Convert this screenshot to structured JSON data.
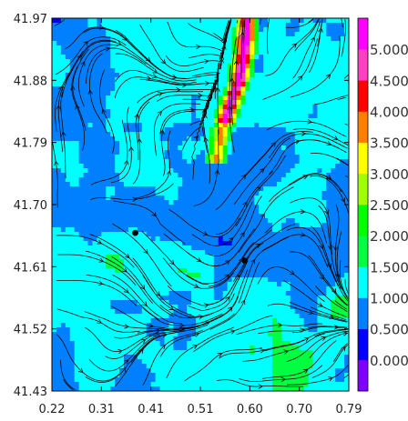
{
  "chart_data": {
    "type": "heatmap",
    "overlay": "streamlines",
    "xaxis": {
      "range": [
        0.22,
        0.79
      ],
      "ticks": [
        "0.22",
        "0.31",
        "0.41",
        "0.51",
        "0.60",
        "0.70",
        "0.79"
      ]
    },
    "yaxis": {
      "range": [
        41.43,
        41.97
      ],
      "ticks": [
        "41.97",
        "41.88",
        "41.79",
        "41.70",
        "41.61",
        "41.52",
        "41.43"
      ]
    },
    "colorbar": {
      "range": [
        -0.5,
        5.5
      ],
      "ticks": [
        "0.000",
        "0.500",
        "1.000",
        "1.500",
        "2.000",
        "2.500",
        "3.000",
        "3.500",
        "4.000",
        "4.500",
        "5.000"
      ],
      "colors": [
        "#8000ff",
        "#0000ff",
        "#0080ff",
        "#00ffff",
        "#00ff40",
        "#00ff00",
        "#a0ff00",
        "#ffff00",
        "#ff8000",
        "#ff0000",
        "#ff40c0",
        "#ff00ff"
      ]
    },
    "markers": [
      {
        "x": 0.38,
        "y": 41.659
      },
      {
        "x": 0.59,
        "y": 41.619
      }
    ],
    "high_value_band": [
      {
        "y": 41.97,
        "x": 0.595
      },
      {
        "y": 41.92,
        "x": 0.59
      },
      {
        "y": 41.88,
        "x": 0.58
      },
      {
        "y": 41.84,
        "x": 0.56
      },
      {
        "y": 41.8,
        "x": 0.545
      },
      {
        "y": 41.76,
        "x": 0.535
      }
    ]
  }
}
